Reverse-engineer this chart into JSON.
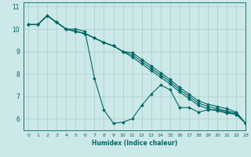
{
  "xlabel": "Humidex (Indice chaleur)",
  "ylabel": "",
  "xlim": [
    -0.5,
    23
  ],
  "ylim": [
    5.5,
    11.2
  ],
  "yticks": [
    6,
    7,
    8,
    9,
    10,
    11
  ],
  "xticks": [
    0,
    1,
    2,
    3,
    4,
    5,
    6,
    7,
    8,
    9,
    10,
    11,
    12,
    13,
    14,
    15,
    16,
    17,
    18,
    19,
    20,
    21,
    22,
    23
  ],
  "bg_color": "#cce8e8",
  "line_color": "#006666",
  "grid_color": "#aacccc",
  "lines": [
    [
      10.2,
      10.2,
      10.6,
      10.3,
      10.0,
      10.0,
      9.9,
      7.8,
      6.4,
      5.8,
      5.85,
      6.0,
      6.6,
      7.1,
      7.5,
      7.3,
      6.5,
      6.5,
      6.3,
      6.4,
      6.4,
      6.3,
      6.2,
      5.8
    ],
    [
      10.2,
      10.2,
      10.6,
      10.3,
      10.0,
      9.9,
      9.8,
      9.6,
      9.4,
      9.25,
      9.0,
      8.75,
      8.45,
      8.15,
      7.85,
      7.55,
      7.2,
      6.9,
      6.6,
      6.45,
      6.35,
      6.25,
      6.2,
      5.8
    ],
    [
      10.2,
      10.2,
      10.6,
      10.3,
      10.0,
      9.9,
      9.8,
      9.6,
      9.4,
      9.25,
      9.0,
      8.85,
      8.55,
      8.25,
      7.95,
      7.65,
      7.3,
      7.0,
      6.7,
      6.55,
      6.45,
      6.35,
      6.25,
      5.8
    ],
    [
      10.2,
      10.2,
      10.6,
      10.3,
      10.0,
      9.9,
      9.8,
      9.6,
      9.4,
      9.25,
      9.0,
      8.95,
      8.65,
      8.35,
      8.05,
      7.75,
      7.4,
      7.1,
      6.8,
      6.65,
      6.55,
      6.45,
      6.3,
      5.8
    ]
  ]
}
